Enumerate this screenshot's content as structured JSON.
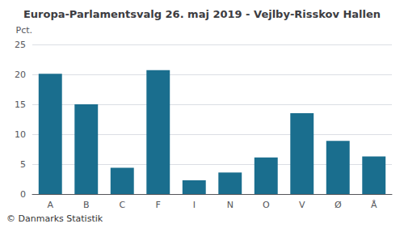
{
  "chart_data": {
    "type": "bar",
    "title": "Europa-Parlamentsvalg 26. maj 2019 - Vejlby-Risskov Hallen",
    "categories": [
      "A",
      "B",
      "C",
      "F",
      "I",
      "N",
      "O",
      "V",
      "Ø",
      "Å"
    ],
    "values": [
      20.1,
      15.0,
      4.4,
      20.7,
      2.3,
      3.6,
      6.1,
      13.5,
      8.9,
      6.3
    ],
    "color": "#1a6e8e",
    "ylabel": "Pct.",
    "ylim": [
      0,
      25
    ],
    "yticks": [
      0,
      5,
      10,
      15,
      20,
      25
    ],
    "grid": true,
    "annotations": [
      "© Danmarks Statistik"
    ]
  }
}
